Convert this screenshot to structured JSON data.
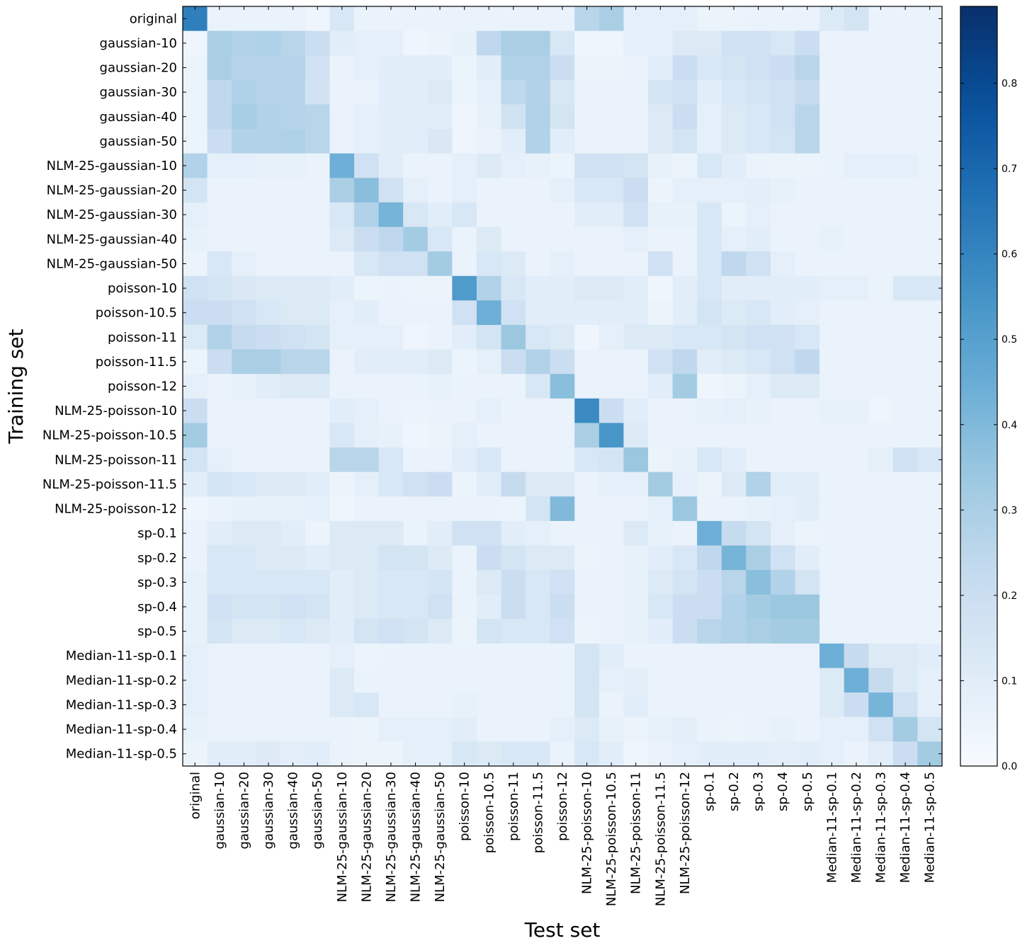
{
  "chart_data": {
    "type": "heatmap",
    "title": "",
    "xlabel": "Test set",
    "ylabel": "Training set",
    "x_categories": [
      "original",
      "gaussian-10",
      "gaussian-20",
      "gaussian-30",
      "gaussian-40",
      "gaussian-50",
      "NLM-25-gaussian-10",
      "NLM-25-gaussian-20",
      "NLM-25-gaussian-30",
      "NLM-25-gaussian-40",
      "NLM-25-gaussian-50",
      "poisson-10",
      "poisson-10.5",
      "poisson-11",
      "poisson-11.5",
      "poisson-12",
      "NLM-25-poisson-10",
      "NLM-25-poisson-10.5",
      "NLM-25-poisson-11",
      "NLM-25-poisson-11.5",
      "NLM-25-poisson-12",
      "sp-0.1",
      "sp-0.2",
      "sp-0.3",
      "sp-0.4",
      "sp-0.5",
      "Median-11-sp-0.1",
      "Median-11-sp-0.2",
      "Median-11-sp-0.3",
      "Median-11-sp-0.4",
      "Median-11-sp-0.5"
    ],
    "y_categories": [
      "original",
      "gaussian-10",
      "gaussian-20",
      "gaussian-30",
      "gaussian-40",
      "gaussian-50",
      "NLM-25-gaussian-10",
      "NLM-25-gaussian-20",
      "NLM-25-gaussian-30",
      "NLM-25-gaussian-40",
      "NLM-25-gaussian-50",
      "poisson-10",
      "poisson-10.5",
      "poisson-11",
      "poisson-11.5",
      "poisson-12",
      "NLM-25-poisson-10",
      "NLM-25-poisson-10.5",
      "NLM-25-poisson-11",
      "NLM-25-poisson-11.5",
      "NLM-25-poisson-12",
      "sp-0.1",
      "sp-0.2",
      "sp-0.3",
      "sp-0.4",
      "sp-0.5",
      "Median-11-sp-0.1",
      "Median-11-sp-0.2",
      "Median-11-sp-0.3",
      "Median-11-sp-0.4",
      "Median-11-sp-0.5"
    ],
    "values": [
      [
        0.62,
        0.06,
        0.06,
        0.06,
        0.06,
        0.04,
        0.14,
        0.06,
        0.06,
        0.06,
        0.06,
        0.06,
        0.06,
        0.06,
        0.06,
        0.06,
        0.26,
        0.3,
        0.08,
        0.08,
        0.08,
        0.05,
        0.05,
        0.06,
        0.06,
        0.06,
        0.12,
        0.16,
        0.06,
        0.06,
        0.06
      ],
      [
        0.04,
        0.3,
        0.28,
        0.29,
        0.26,
        0.2,
        0.1,
        0.08,
        0.08,
        0.04,
        0.05,
        0.07,
        0.24,
        0.3,
        0.3,
        0.14,
        0.04,
        0.04,
        0.08,
        0.08,
        0.12,
        0.12,
        0.18,
        0.18,
        0.14,
        0.2,
        0.06,
        0.06,
        0.06,
        0.06,
        0.06
      ],
      [
        0.05,
        0.3,
        0.27,
        0.27,
        0.27,
        0.18,
        0.06,
        0.08,
        0.1,
        0.1,
        0.1,
        0.05,
        0.1,
        0.28,
        0.28,
        0.2,
        0.05,
        0.05,
        0.06,
        0.1,
        0.2,
        0.14,
        0.16,
        0.18,
        0.2,
        0.26,
        0.06,
        0.06,
        0.06,
        0.06,
        0.06
      ],
      [
        0.05,
        0.24,
        0.29,
        0.27,
        0.27,
        0.17,
        0.06,
        0.06,
        0.1,
        0.1,
        0.12,
        0.05,
        0.08,
        0.24,
        0.28,
        0.14,
        0.06,
        0.06,
        0.06,
        0.16,
        0.18,
        0.1,
        0.14,
        0.16,
        0.18,
        0.22,
        0.06,
        0.06,
        0.06,
        0.06,
        0.06
      ],
      [
        0.05,
        0.24,
        0.31,
        0.28,
        0.27,
        0.26,
        0.06,
        0.08,
        0.1,
        0.1,
        0.1,
        0.04,
        0.07,
        0.17,
        0.28,
        0.16,
        0.06,
        0.06,
        0.06,
        0.12,
        0.2,
        0.08,
        0.12,
        0.14,
        0.18,
        0.26,
        0.06,
        0.06,
        0.06,
        0.06,
        0.06
      ],
      [
        0.05,
        0.2,
        0.28,
        0.28,
        0.29,
        0.26,
        0.06,
        0.08,
        0.1,
        0.1,
        0.13,
        0.04,
        0.06,
        0.1,
        0.28,
        0.1,
        0.06,
        0.06,
        0.06,
        0.12,
        0.16,
        0.08,
        0.12,
        0.14,
        0.16,
        0.26,
        0.06,
        0.06,
        0.06,
        0.06,
        0.06
      ],
      [
        0.28,
        0.08,
        0.08,
        0.07,
        0.07,
        0.06,
        0.44,
        0.18,
        0.1,
        0.06,
        0.06,
        0.08,
        0.12,
        0.08,
        0.07,
        0.05,
        0.18,
        0.18,
        0.16,
        0.07,
        0.05,
        0.14,
        0.1,
        0.06,
        0.05,
        0.05,
        0.06,
        0.08,
        0.08,
        0.08,
        0.06
      ],
      [
        0.16,
        0.06,
        0.06,
        0.06,
        0.06,
        0.06,
        0.3,
        0.38,
        0.18,
        0.08,
        0.06,
        0.08,
        0.06,
        0.06,
        0.06,
        0.08,
        0.14,
        0.14,
        0.2,
        0.05,
        0.08,
        0.08,
        0.08,
        0.09,
        0.07,
        0.06,
        0.06,
        0.06,
        0.06,
        0.06,
        0.06
      ],
      [
        0.08,
        0.06,
        0.06,
        0.06,
        0.06,
        0.06,
        0.14,
        0.28,
        0.42,
        0.14,
        0.1,
        0.14,
        0.06,
        0.06,
        0.06,
        0.06,
        0.1,
        0.1,
        0.18,
        0.07,
        0.07,
        0.14,
        0.05,
        0.08,
        0.06,
        0.06,
        0.06,
        0.06,
        0.06,
        0.06,
        0.06
      ],
      [
        0.07,
        0.06,
        0.06,
        0.06,
        0.06,
        0.06,
        0.12,
        0.2,
        0.24,
        0.32,
        0.14,
        0.06,
        0.12,
        0.06,
        0.06,
        0.06,
        0.06,
        0.06,
        0.08,
        0.06,
        0.06,
        0.14,
        0.08,
        0.1,
        0.06,
        0.06,
        0.07,
        0.06,
        0.06,
        0.06,
        0.06
      ],
      [
        0.05,
        0.14,
        0.08,
        0.06,
        0.06,
        0.06,
        0.06,
        0.14,
        0.18,
        0.18,
        0.32,
        0.06,
        0.14,
        0.12,
        0.06,
        0.08,
        0.06,
        0.06,
        0.06,
        0.18,
        0.06,
        0.14,
        0.24,
        0.18,
        0.08,
        0.06,
        0.06,
        0.06,
        0.06,
        0.06,
        0.06
      ],
      [
        0.18,
        0.16,
        0.13,
        0.12,
        0.12,
        0.12,
        0.1,
        0.05,
        0.06,
        0.05,
        0.05,
        0.52,
        0.28,
        0.14,
        0.1,
        0.1,
        0.12,
        0.12,
        0.1,
        0.04,
        0.1,
        0.14,
        0.1,
        0.1,
        0.1,
        0.1,
        0.08,
        0.08,
        0.06,
        0.14,
        0.14
      ],
      [
        0.2,
        0.2,
        0.18,
        0.14,
        0.12,
        0.12,
        0.08,
        0.1,
        0.06,
        0.06,
        0.06,
        0.18,
        0.44,
        0.18,
        0.1,
        0.1,
        0.1,
        0.1,
        0.1,
        0.05,
        0.1,
        0.16,
        0.12,
        0.14,
        0.1,
        0.08,
        0.06,
        0.06,
        0.06,
        0.06,
        0.06
      ],
      [
        0.12,
        0.28,
        0.22,
        0.2,
        0.18,
        0.16,
        0.08,
        0.08,
        0.08,
        0.04,
        0.06,
        0.1,
        0.16,
        0.34,
        0.14,
        0.12,
        0.04,
        0.08,
        0.12,
        0.12,
        0.14,
        0.14,
        0.16,
        0.18,
        0.18,
        0.14,
        0.06,
        0.06,
        0.06,
        0.06,
        0.06
      ],
      [
        0.05,
        0.2,
        0.3,
        0.3,
        0.26,
        0.26,
        0.06,
        0.1,
        0.1,
        0.1,
        0.12,
        0.05,
        0.08,
        0.2,
        0.28,
        0.2,
        0.06,
        0.06,
        0.06,
        0.18,
        0.24,
        0.1,
        0.12,
        0.14,
        0.18,
        0.24,
        0.06,
        0.06,
        0.06,
        0.06,
        0.06
      ],
      [
        0.08,
        0.06,
        0.07,
        0.1,
        0.12,
        0.12,
        0.06,
        0.06,
        0.06,
        0.06,
        0.07,
        0.06,
        0.06,
        0.06,
        0.14,
        0.38,
        0.06,
        0.06,
        0.06,
        0.1,
        0.32,
        0.04,
        0.05,
        0.08,
        0.12,
        0.12,
        0.06,
        0.06,
        0.06,
        0.06,
        0.06
      ],
      [
        0.2,
        0.06,
        0.06,
        0.06,
        0.06,
        0.06,
        0.1,
        0.08,
        0.06,
        0.05,
        0.06,
        0.06,
        0.08,
        0.06,
        0.06,
        0.06,
        0.58,
        0.2,
        0.1,
        0.06,
        0.06,
        0.07,
        0.08,
        0.07,
        0.06,
        0.06,
        0.07,
        0.07,
        0.04,
        0.06,
        0.06
      ],
      [
        0.32,
        0.06,
        0.06,
        0.06,
        0.06,
        0.06,
        0.14,
        0.08,
        0.07,
        0.04,
        0.05,
        0.08,
        0.06,
        0.06,
        0.06,
        0.06,
        0.3,
        0.54,
        0.12,
        0.06,
        0.06,
        0.06,
        0.06,
        0.06,
        0.06,
        0.06,
        0.06,
        0.06,
        0.06,
        0.06,
        0.06
      ],
      [
        0.16,
        0.08,
        0.06,
        0.06,
        0.06,
        0.06,
        0.26,
        0.26,
        0.14,
        0.06,
        0.06,
        0.1,
        0.14,
        0.06,
        0.06,
        0.06,
        0.14,
        0.16,
        0.34,
        0.05,
        0.07,
        0.14,
        0.1,
        0.06,
        0.06,
        0.06,
        0.06,
        0.06,
        0.08,
        0.18,
        0.14
      ],
      [
        0.1,
        0.16,
        0.14,
        0.12,
        0.12,
        0.1,
        0.05,
        0.08,
        0.14,
        0.18,
        0.2,
        0.05,
        0.1,
        0.22,
        0.12,
        0.12,
        0.06,
        0.08,
        0.08,
        0.32,
        0.08,
        0.05,
        0.12,
        0.28,
        0.1,
        0.1,
        0.06,
        0.06,
        0.06,
        0.06,
        0.06
      ],
      [
        0.04,
        0.06,
        0.07,
        0.07,
        0.07,
        0.08,
        0.04,
        0.06,
        0.06,
        0.06,
        0.06,
        0.06,
        0.06,
        0.05,
        0.16,
        0.4,
        0.06,
        0.06,
        0.06,
        0.08,
        0.34,
        0.06,
        0.06,
        0.07,
        0.08,
        0.1,
        0.06,
        0.06,
        0.06,
        0.06,
        0.06
      ],
      [
        0.06,
        0.1,
        0.12,
        0.12,
        0.1,
        0.05,
        0.12,
        0.12,
        0.12,
        0.06,
        0.1,
        0.18,
        0.18,
        0.1,
        0.08,
        0.06,
        0.06,
        0.06,
        0.12,
        0.07,
        0.06,
        0.44,
        0.22,
        0.16,
        0.08,
        0.05,
        0.06,
        0.06,
        0.06,
        0.06,
        0.06
      ],
      [
        0.06,
        0.14,
        0.14,
        0.12,
        0.12,
        0.1,
        0.12,
        0.12,
        0.16,
        0.16,
        0.12,
        0.06,
        0.2,
        0.16,
        0.12,
        0.12,
        0.05,
        0.06,
        0.07,
        0.1,
        0.14,
        0.24,
        0.42,
        0.3,
        0.18,
        0.1,
        0.06,
        0.06,
        0.06,
        0.06,
        0.06
      ],
      [
        0.07,
        0.14,
        0.14,
        0.14,
        0.14,
        0.14,
        0.1,
        0.12,
        0.14,
        0.14,
        0.16,
        0.06,
        0.12,
        0.2,
        0.14,
        0.18,
        0.06,
        0.06,
        0.07,
        0.12,
        0.16,
        0.2,
        0.26,
        0.38,
        0.28,
        0.16,
        0.06,
        0.06,
        0.06,
        0.06,
        0.06
      ],
      [
        0.07,
        0.18,
        0.16,
        0.16,
        0.18,
        0.16,
        0.1,
        0.12,
        0.14,
        0.14,
        0.18,
        0.06,
        0.1,
        0.2,
        0.14,
        0.2,
        0.06,
        0.06,
        0.07,
        0.14,
        0.2,
        0.2,
        0.28,
        0.32,
        0.34,
        0.34,
        0.06,
        0.06,
        0.06,
        0.06,
        0.06
      ],
      [
        0.07,
        0.16,
        0.12,
        0.12,
        0.14,
        0.12,
        0.1,
        0.16,
        0.18,
        0.16,
        0.12,
        0.05,
        0.16,
        0.14,
        0.14,
        0.18,
        0.05,
        0.06,
        0.07,
        0.1,
        0.2,
        0.26,
        0.28,
        0.3,
        0.32,
        0.32,
        0.06,
        0.06,
        0.06,
        0.06,
        0.06
      ],
      [
        0.08,
        0.06,
        0.06,
        0.06,
        0.06,
        0.06,
        0.08,
        0.05,
        0.06,
        0.06,
        0.06,
        0.06,
        0.06,
        0.06,
        0.06,
        0.06,
        0.16,
        0.1,
        0.06,
        0.06,
        0.06,
        0.06,
        0.06,
        0.06,
        0.06,
        0.06,
        0.44,
        0.22,
        0.12,
        0.12,
        0.1
      ],
      [
        0.08,
        0.06,
        0.06,
        0.06,
        0.06,
        0.06,
        0.12,
        0.06,
        0.06,
        0.06,
        0.06,
        0.06,
        0.06,
        0.06,
        0.06,
        0.06,
        0.16,
        0.08,
        0.09,
        0.06,
        0.06,
        0.06,
        0.06,
        0.06,
        0.06,
        0.06,
        0.12,
        0.44,
        0.22,
        0.12,
        0.08
      ],
      [
        0.08,
        0.06,
        0.06,
        0.06,
        0.06,
        0.06,
        0.12,
        0.14,
        0.06,
        0.06,
        0.06,
        0.07,
        0.06,
        0.06,
        0.06,
        0.06,
        0.16,
        0.06,
        0.1,
        0.06,
        0.06,
        0.06,
        0.06,
        0.06,
        0.06,
        0.06,
        0.12,
        0.2,
        0.42,
        0.18,
        0.08
      ],
      [
        0.07,
        0.06,
        0.06,
        0.06,
        0.06,
        0.06,
        0.06,
        0.05,
        0.08,
        0.08,
        0.08,
        0.1,
        0.06,
        0.06,
        0.06,
        0.08,
        0.12,
        0.07,
        0.05,
        0.07,
        0.09,
        0.06,
        0.05,
        0.06,
        0.07,
        0.06,
        0.08,
        0.08,
        0.18,
        0.32,
        0.16
      ],
      [
        0.05,
        0.1,
        0.1,
        0.11,
        0.09,
        0.1,
        0.06,
        0.05,
        0.05,
        0.08,
        0.08,
        0.14,
        0.12,
        0.14,
        0.14,
        0.06,
        0.14,
        0.1,
        0.04,
        0.06,
        0.08,
        0.1,
        0.1,
        0.1,
        0.09,
        0.1,
        0.08,
        0.06,
        0.1,
        0.2,
        0.32
      ]
    ],
    "colorbar": {
      "colormap": "Blues",
      "range": [
        0.0,
        0.89
      ],
      "ticks": [
        0.0,
        0.1,
        0.2,
        0.3,
        0.4,
        0.5,
        0.6,
        0.7,
        0.8
      ],
      "tick_labels": [
        "0.0",
        "0.1",
        "0.2",
        "0.3",
        "0.4",
        "0.5",
        "0.6",
        "0.7",
        "0.8"
      ]
    },
    "grid": false
  }
}
